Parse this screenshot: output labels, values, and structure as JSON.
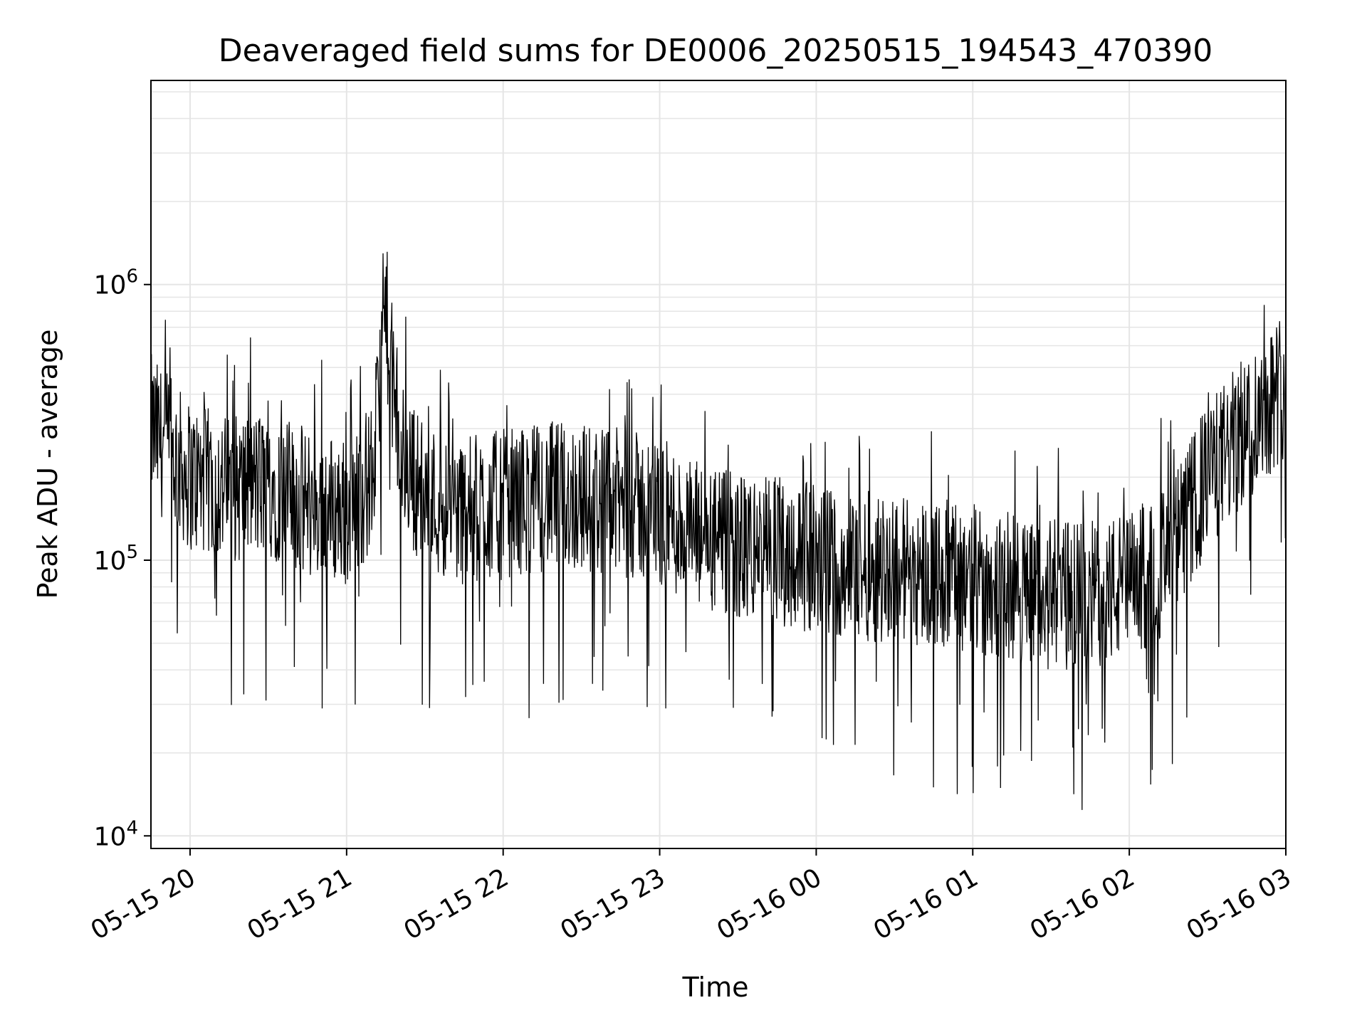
{
  "chart_data": {
    "type": "line",
    "title": "Deaveraged field sums for DE0006_20250515_194543_470390",
    "xlabel": "Time",
    "ylabel": "Peak ADU - average",
    "x_axis": {
      "type": "date",
      "range": [
        "2025-05-15 19:45",
        "2025-05-16 03:00"
      ],
      "ticks": [
        {
          "value": "2025-05-15 20:00",
          "label": "05-15 20"
        },
        {
          "value": "2025-05-15 21:00",
          "label": "05-15 21"
        },
        {
          "value": "2025-05-15 22:00",
          "label": "05-15 22"
        },
        {
          "value": "2025-05-15 23:00",
          "label": "05-15 23"
        },
        {
          "value": "2025-05-16 00:00",
          "label": "05-16 00"
        },
        {
          "value": "2025-05-16 01:00",
          "label": "05-16 01"
        },
        {
          "value": "2025-05-16 02:00",
          "label": "05-16 02"
        },
        {
          "value": "2025-05-16 03:00",
          "label": "05-16 03"
        }
      ]
    },
    "y_axis": {
      "scale": "log",
      "range": [
        9000,
        5500000
      ],
      "ticks": [
        {
          "value": 10000,
          "base": "10",
          "exp": "4"
        },
        {
          "value": 100000,
          "base": "10",
          "exp": "5"
        },
        {
          "value": 1000000,
          "base": "10",
          "exp": "6"
        }
      ]
    },
    "grid": true,
    "line_color": "#000000",
    "grid_color": "#e5e5e5",
    "series": [
      {
        "x": [
          "2025-05-15 19:45",
          "2025-05-15 20:00",
          "2025-05-15 20:15",
          "2025-05-15 20:30",
          "2025-05-15 20:45",
          "2025-05-15 21:00",
          "2025-05-15 21:10",
          "2025-05-15 21:15",
          "2025-05-15 21:20",
          "2025-05-15 21:30",
          "2025-05-15 21:45",
          "2025-05-15 22:00",
          "2025-05-15 22:15",
          "2025-05-15 22:30",
          "2025-05-15 22:45",
          "2025-05-15 23:00",
          "2025-05-15 23:15",
          "2025-05-15 23:30",
          "2025-05-15 23:45",
          "2025-05-16 00:00",
          "2025-05-16 00:15",
          "2025-05-16 00:30",
          "2025-05-16 00:45",
          "2025-05-16 01:00",
          "2025-05-16 01:15",
          "2025-05-16 01:30",
          "2025-05-16 01:45",
          "2025-05-16 02:00",
          "2025-05-16 02:15",
          "2025-05-16 02:30",
          "2025-05-16 02:45",
          "2025-05-16 03:00"
        ],
        "values": [
          300000,
          200000,
          180000,
          190000,
          160000,
          150000,
          200000,
          800000,
          250000,
          170000,
          150000,
          160000,
          170000,
          170000,
          160000,
          150000,
          120000,
          110000,
          110000,
          100000,
          95000,
          95000,
          90000,
          85000,
          80000,
          75000,
          75000,
          80000,
          100000,
          200000,
          300000,
          450000
        ]
      }
    ]
  }
}
